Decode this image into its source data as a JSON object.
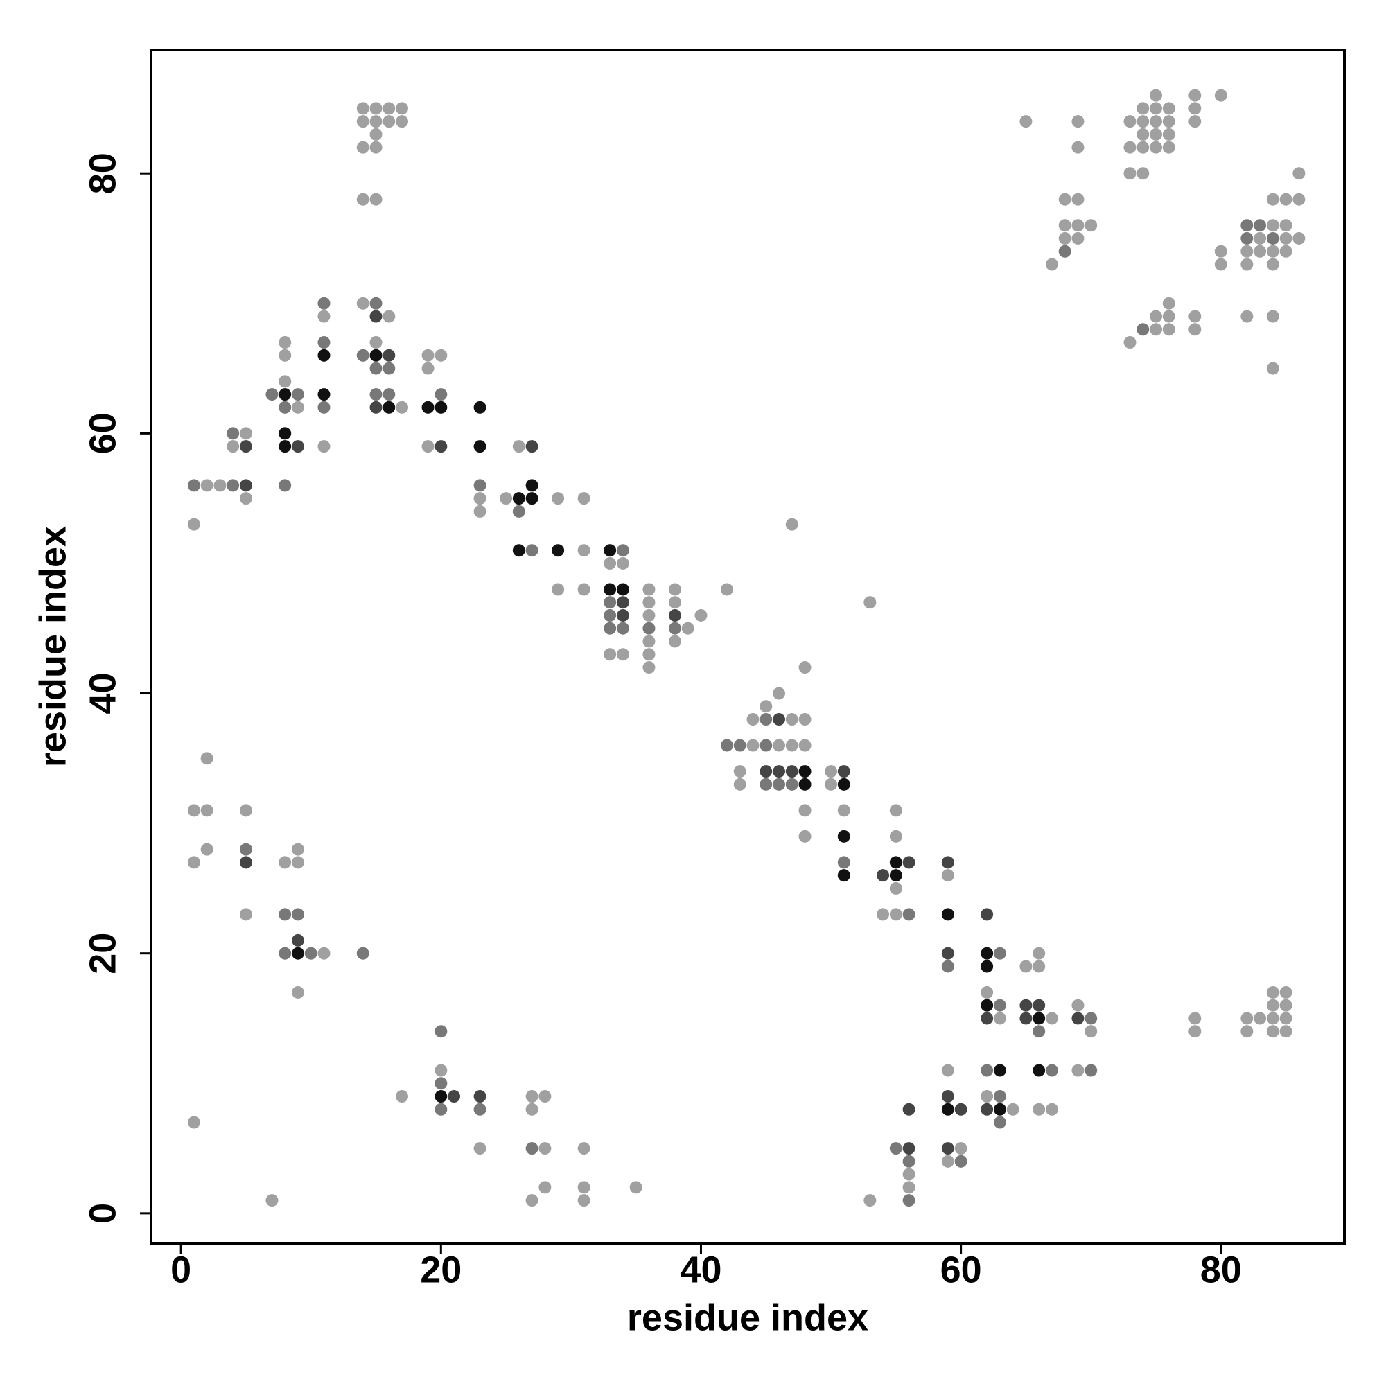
{
  "chart_data": {
    "type": "scatter",
    "x_label": "residue index",
    "y_label": "residue index",
    "xlim": [
      -2.3,
      89.5
    ],
    "ylim": [
      -2.3,
      89.5
    ],
    "xticks": [
      0,
      20,
      40,
      60,
      80
    ],
    "yticks": [
      0,
      20,
      40,
      60,
      80
    ],
    "x": [
      14,
      15,
      16,
      17,
      14,
      15,
      16,
      17,
      15,
      14,
      15,
      14,
      15,
      14,
      15,
      11,
      11,
      15,
      16,
      8,
      11,
      15,
      8,
      11,
      14,
      15,
      16,
      19,
      20,
      15,
      16,
      19,
      8,
      7,
      8,
      9,
      11,
      15,
      16,
      20,
      8,
      9,
      11,
      15,
      16,
      17,
      19,
      20,
      23,
      4,
      5,
      8,
      4,
      5,
      8,
      9,
      11,
      19,
      20,
      23,
      26,
      27,
      1,
      2,
      3,
      4,
      5,
      8,
      23,
      27,
      5,
      23,
      25,
      26,
      27,
      29,
      31,
      23,
      26,
      1,
      47,
      26,
      27,
      29,
      31,
      33,
      34,
      33,
      34,
      29,
      31,
      33,
      34,
      36,
      38,
      42,
      53,
      33,
      34,
      36,
      38,
      33,
      34,
      36,
      38,
      40,
      33,
      34,
      36,
      38,
      39,
      36,
      38,
      33,
      34,
      36,
      36,
      48,
      46,
      45,
      44,
      45,
      46,
      47,
      48,
      42,
      43,
      44,
      45,
      46,
      47,
      48,
      2,
      43,
      45,
      46,
      47,
      48,
      50,
      51,
      43,
      45,
      46,
      47,
      48,
      50,
      51,
      1,
      2,
      5,
      48,
      51,
      55,
      48,
      51,
      55,
      2,
      5,
      9,
      1,
      5,
      8,
      9,
      51,
      55,
      56,
      59,
      51,
      54,
      55,
      59,
      55,
      5,
      8,
      9,
      54,
      55,
      56,
      59,
      62,
      9,
      8,
      9,
      10,
      11,
      14,
      59,
      62,
      63,
      66,
      59,
      62,
      65,
      66,
      9,
      62,
      84,
      85,
      62,
      63,
      65,
      66,
      69,
      84,
      85,
      62,
      63,
      65,
      66,
      67,
      69,
      70,
      78,
      82,
      83,
      84,
      85,
      66,
      70,
      78,
      82,
      84,
      85,
      20,
      20,
      59,
      62,
      63,
      66,
      67,
      69,
      70,
      20,
      17,
      20,
      21,
      23,
      27,
      28,
      59,
      62,
      63,
      20,
      23,
      27,
      56,
      59,
      60,
      62,
      63,
      64,
      66,
      67,
      63,
      1,
      23,
      27,
      28,
      31,
      55,
      56,
      59,
      60,
      56,
      59,
      60,
      56,
      28,
      31,
      35,
      56,
      7,
      27,
      31,
      53,
      56,
      75,
      78,
      80,
      74,
      75,
      76,
      78,
      65,
      69,
      73,
      74,
      75,
      76,
      78,
      74,
      75,
      76,
      69,
      73,
      74,
      75,
      76,
      86,
      73,
      74,
      68,
      69,
      84,
      85,
      86,
      82,
      83,
      84,
      85,
      68,
      69,
      70,
      68,
      69,
      82,
      83,
      84,
      85,
      86,
      68,
      80,
      82,
      83,
      84,
      85,
      67,
      80,
      82,
      84,
      76,
      75,
      76,
      78,
      82,
      84,
      74,
      75,
      76,
      78,
      73,
      84
    ],
    "y": [
      85,
      85,
      85,
      85,
      84,
      84,
      84,
      84,
      83,
      82,
      82,
      78,
      78,
      70,
      70,
      70,
      69,
      69,
      69,
      67,
      67,
      67,
      66,
      66,
      66,
      66,
      66,
      66,
      66,
      65,
      65,
      65,
      64,
      63,
      63,
      63,
      63,
      63,
      63,
      63,
      62,
      62,
      62,
      62,
      62,
      62,
      62,
      62,
      62,
      60,
      60,
      60,
      59,
      59,
      59,
      59,
      59,
      59,
      59,
      59,
      59,
      59,
      56,
      56,
      56,
      56,
      56,
      56,
      56,
      56,
      55,
      55,
      55,
      55,
      55,
      55,
      55,
      54,
      54,
      53,
      53,
      51,
      51,
      51,
      51,
      51,
      51,
      50,
      50,
      48,
      48,
      48,
      48,
      48,
      48,
      48,
      47,
      47,
      47,
      47,
      47,
      46,
      46,
      46,
      46,
      46,
      45,
      45,
      45,
      45,
      45,
      44,
      44,
      43,
      43,
      43,
      42,
      42,
      40,
      39,
      38,
      38,
      38,
      38,
      38,
      36,
      36,
      36,
      36,
      36,
      36,
      36,
      35,
      34,
      34,
      34,
      34,
      34,
      34,
      34,
      33,
      33,
      33,
      33,
      33,
      33,
      33,
      31,
      31,
      31,
      31,
      31,
      31,
      29,
      29,
      29,
      28,
      28,
      28,
      27,
      27,
      27,
      27,
      27,
      27,
      27,
      27,
      26,
      26,
      26,
      26,
      25,
      23,
      23,
      23,
      23,
      23,
      23,
      23,
      23,
      21,
      20,
      20,
      20,
      20,
      20,
      20,
      20,
      20,
      20,
      19,
      19,
      19,
      19,
      17,
      17,
      17,
      17,
      16,
      16,
      16,
      16,
      16,
      16,
      16,
      15,
      15,
      15,
      15,
      15,
      15,
      15,
      15,
      15,
      15,
      15,
      15,
      14,
      14,
      14,
      14,
      14,
      14,
      14,
      11,
      11,
      11,
      11,
      11,
      11,
      11,
      11,
      10,
      9,
      9,
      9,
      9,
      9,
      9,
      9,
      9,
      9,
      8,
      8,
      8,
      8,
      8,
      8,
      8,
      8,
      8,
      8,
      8,
      7,
      7,
      5,
      5,
      5,
      5,
      5,
      5,
      5,
      5,
      4,
      4,
      4,
      3,
      2,
      2,
      2,
      2,
      1,
      1,
      1,
      1,
      1,
      86,
      86,
      86,
      85,
      85,
      85,
      85,
      84,
      84,
      84,
      84,
      84,
      84,
      84,
      83,
      83,
      83,
      82,
      82,
      82,
      82,
      82,
      80,
      80,
      80,
      78,
      78,
      78,
      78,
      78,
      76,
      76,
      76,
      76,
      76,
      76,
      76,
      75,
      75,
      75,
      75,
      75,
      75,
      75,
      74,
      74,
      74,
      74,
      74,
      74,
      73,
      73,
      73,
      73,
      70,
      69,
      69,
      69,
      69,
      69,
      68,
      68,
      68,
      68,
      67,
      65
    ],
    "colors": [
      "#a0a0a0",
      "#a0a0a0",
      "#a0a0a0",
      "#a0a0a0",
      "#a0a0a0",
      "#a0a0a0",
      "#a0a0a0",
      "#a0a0a0",
      "#a0a0a0",
      "#a0a0a0",
      "#a0a0a0",
      "#a0a0a0",
      "#a0a0a0",
      "#a0a0a0",
      "#787878",
      "#787878",
      "#a0a0a0",
      "#454545",
      "#a0a0a0",
      "#a0a0a0",
      "#787878",
      "#a0a0a0",
      "#a0a0a0",
      "#111111",
      "#787878",
      "#111111",
      "#454545",
      "#a0a0a0",
      "#a0a0a0",
      "#787878",
      "#787878",
      "#a0a0a0",
      "#a0a0a0",
      "#787878",
      "#111111",
      "#787878",
      "#111111",
      "#787878",
      "#787878",
      "#787878",
      "#787878",
      "#a0a0a0",
      "#787878",
      "#454545",
      "#111111",
      "#a0a0a0",
      "#111111",
      "#111111",
      "#111111",
      "#787878",
      "#a0a0a0",
      "#111111",
      "#a0a0a0",
      "#454545",
      "#111111",
      "#454545",
      "#a0a0a0",
      "#a0a0a0",
      "#454545",
      "#111111",
      "#a0a0a0",
      "#454545",
      "#787878",
      "#a0a0a0",
      "#a0a0a0",
      "#787878",
      "#454545",
      "#787878",
      "#787878",
      "#111111",
      "#a0a0a0",
      "#a0a0a0",
      "#a0a0a0",
      "#111111",
      "#111111",
      "#a0a0a0",
      "#a0a0a0",
      "#a0a0a0",
      "#787878",
      "#a0a0a0",
      "#a0a0a0",
      "#111111",
      "#787878",
      "#111111",
      "#a0a0a0",
      "#111111",
      "#787878",
      "#a0a0a0",
      "#a0a0a0",
      "#a0a0a0",
      "#a0a0a0",
      "#111111",
      "#111111",
      "#a0a0a0",
      "#a0a0a0",
      "#a0a0a0",
      "#a0a0a0",
      "#787878",
      "#454545",
      "#a0a0a0",
      "#a0a0a0",
      "#787878",
      "#454545",
      "#a0a0a0",
      "#454545",
      "#a0a0a0",
      "#787878",
      "#787878",
      "#787878",
      "#787878",
      "#a0a0a0",
      "#a0a0a0",
      "#a0a0a0",
      "#a0a0a0",
      "#a0a0a0",
      "#a0a0a0",
      "#a0a0a0",
      "#a0a0a0",
      "#a0a0a0",
      "#a0a0a0",
      "#a0a0a0",
      "#787878",
      "#454545",
      "#a0a0a0",
      "#a0a0a0",
      "#787878",
      "#787878",
      "#a0a0a0",
      "#787878",
      "#a0a0a0",
      "#a0a0a0",
      "#a0a0a0",
      "#a0a0a0",
      "#a0a0a0",
      "#454545",
      "#454545",
      "#454545",
      "#111111",
      "#a0a0a0",
      "#454545",
      "#a0a0a0",
      "#787878",
      "#787878",
      "#787878",
      "#111111",
      "#a0a0a0",
      "#111111",
      "#a0a0a0",
      "#a0a0a0",
      "#a0a0a0",
      "#a0a0a0",
      "#a0a0a0",
      "#a0a0a0",
      "#a0a0a0",
      "#111111",
      "#a0a0a0",
      "#a0a0a0",
      "#787878",
      "#a0a0a0",
      "#a0a0a0",
      "#454545",
      "#a0a0a0",
      "#a0a0a0",
      "#787878",
      "#111111",
      "#454545",
      "#454545",
      "#111111",
      "#454545",
      "#111111",
      "#a0a0a0",
      "#a0a0a0",
      "#a0a0a0",
      "#787878",
      "#787878",
      "#a0a0a0",
      "#a0a0a0",
      "#787878",
      "#111111",
      "#454545",
      "#454545",
      "#787878",
      "#111111",
      "#787878",
      "#a0a0a0",
      "#787878",
      "#454545",
      "#111111",
      "#787878",
      "#a0a0a0",
      "#787878",
      "#111111",
      "#a0a0a0",
      "#a0a0a0",
      "#a0a0a0",
      "#a0a0a0",
      "#a0a0a0",
      "#a0a0a0",
      "#111111",
      "#787878",
      "#454545",
      "#454545",
      "#a0a0a0",
      "#a0a0a0",
      "#a0a0a0",
      "#454545",
      "#a0a0a0",
      "#454545",
      "#111111",
      "#a0a0a0",
      "#454545",
      "#787878",
      "#a0a0a0",
      "#a0a0a0",
      "#a0a0a0",
      "#a0a0a0",
      "#a0a0a0",
      "#787878",
      "#a0a0a0",
      "#a0a0a0",
      "#a0a0a0",
      "#a0a0a0",
      "#a0a0a0",
      "#787878",
      "#a0a0a0",
      "#a0a0a0",
      "#787878",
      "#111111",
      "#111111",
      "#787878",
      "#a0a0a0",
      "#787878",
      "#787878",
      "#a0a0a0",
      "#111111",
      "#454545",
      "#454545",
      "#a0a0a0",
      "#a0a0a0",
      "#454545",
      "#a0a0a0",
      "#787878",
      "#787878",
      "#787878",
      "#a0a0a0",
      "#454545",
      "#111111",
      "#454545",
      "#454545",
      "#111111",
      "#a0a0a0",
      "#a0a0a0",
      "#a0a0a0",
      "#787878",
      "#a0a0a0",
      "#a0a0a0",
      "#787878",
      "#a0a0a0",
      "#a0a0a0",
      "#787878",
      "#454545",
      "#454545",
      "#a0a0a0",
      "#787878",
      "#a0a0a0",
      "#787878",
      "#a0a0a0",
      "#a0a0a0",
      "#a0a0a0",
      "#a0a0a0",
      "#a0a0a0",
      "#a0a0a0",
      "#a0a0a0",
      "#a0a0a0",
      "#a0a0a0",
      "#787878",
      "#a0a0a0",
      "#a0a0a0",
      "#a0a0a0",
      "#a0a0a0",
      "#a0a0a0",
      "#a0a0a0",
      "#a0a0a0",
      "#a0a0a0",
      "#a0a0a0",
      "#a0a0a0",
      "#a0a0a0",
      "#a0a0a0",
      "#a0a0a0",
      "#a0a0a0",
      "#a0a0a0",
      "#a0a0a0",
      "#a0a0a0",
      "#a0a0a0",
      "#a0a0a0",
      "#a0a0a0",
      "#a0a0a0",
      "#a0a0a0",
      "#a0a0a0",
      "#a0a0a0",
      "#a0a0a0",
      "#a0a0a0",
      "#a0a0a0",
      "#a0a0a0",
      "#a0a0a0",
      "#a0a0a0",
      "#787878",
      "#787878",
      "#a0a0a0",
      "#a0a0a0",
      "#a0a0a0",
      "#a0a0a0",
      "#a0a0a0",
      "#a0a0a0",
      "#a0a0a0",
      "#787878",
      "#a0a0a0",
      "#787878",
      "#a0a0a0",
      "#a0a0a0",
      "#787878",
      "#a0a0a0",
      "#a0a0a0",
      "#a0a0a0",
      "#a0a0a0",
      "#a0a0a0",
      "#a0a0a0",
      "#a0a0a0",
      "#a0a0a0",
      "#a0a0a0",
      "#a0a0a0",
      "#a0a0a0",
      "#a0a0a0",
      "#a0a0a0",
      "#a0a0a0",
      "#a0a0a0",
      "#787878",
      "#a0a0a0",
      "#a0a0a0",
      "#a0a0a0",
      "#a0a0a0",
      "#a0a0a0"
    ]
  }
}
